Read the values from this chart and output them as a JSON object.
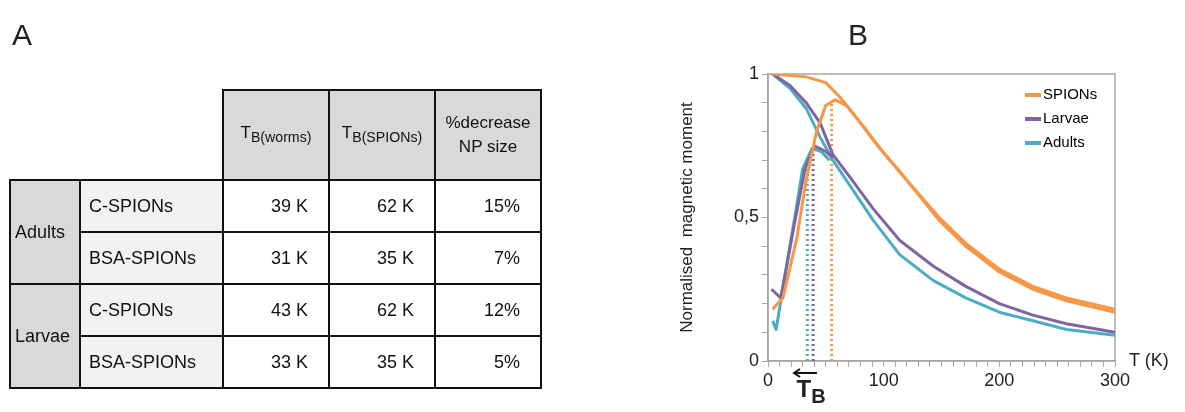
{
  "chart_data": [
    {
      "type": "other",
      "title": "A",
      "annotations": [
        "T$_{B(worms)}$",
        "T$_{B(SPIONs)}$",
        "%decrease NP size",
        "Adults",
        "C-SPIONs",
        "39 K",
        "62 K",
        "15%",
        "BSA-SPIONs",
        "31 K",
        "35 K",
        "7%",
        "Larvae",
        "C-SPIONs",
        "43 K",
        "62 K",
        "12%",
        "BSA-SPIONs",
        "33 K",
        "35 K",
        "5%"
      ]
    },
    {
      "type": "line",
      "title": "B",
      "xlabel": "T (K)",
      "ylabel": "Normalised  magnetic moment",
      "xlim": [
        0,
        300
      ],
      "ylim": [
        0,
        1
      ],
      "legend": "top right",
      "marker": "none",
      "xticks": [
        0,
        {
          "value": 10,
          "label": null
        },
        {
          "value": 20,
          "label": null
        },
        {
          "value": 30,
          "label": null
        },
        {
          "value": 40,
          "label": null
        },
        {
          "value": 50,
          "label": null
        },
        {
          "value": 60,
          "label": null
        },
        {
          "value": 70,
          "label": null
        },
        {
          "value": 80,
          "label": null
        },
        {
          "value": 90,
          "label": null
        },
        100,
        {
          "value": 110,
          "label": null
        },
        {
          "value": 120,
          "label": null
        },
        {
          "value": 130,
          "label": null
        },
        {
          "value": 140,
          "label": null
        },
        {
          "value": 150,
          "label": null
        },
        {
          "value": 160,
          "label": null
        },
        {
          "value": 170,
          "label": null
        },
        {
          "value": 180,
          "label": null
        },
        {
          "value": 190,
          "label": null
        },
        200,
        {
          "value": 210,
          "label": null
        },
        {
          "value": 220,
          "label": null
        },
        {
          "value": 230,
          "label": null
        },
        {
          "value": 240,
          "label": null
        },
        {
          "value": 250,
          "label": null
        },
        {
          "value": 260,
          "label": null
        },
        {
          "value": 270,
          "label": null
        },
        {
          "value": 280,
          "label": null
        },
        {
          "value": 290,
          "label": null
        },
        300
      ],
      "yticks": [
        {
          "value": 0,
          "label": "0"
        },
        {
          "value": 0.1,
          "label": null
        },
        {
          "value": 0.2,
          "label": null
        },
        {
          "value": 0.3,
          "label": null
        },
        {
          "value": 0.4,
          "label": null
        },
        {
          "value": 0.5,
          "label": "0,5"
        },
        {
          "value": 0.6,
          "label": null
        },
        {
          "value": 0.7,
          "label": null
        },
        {
          "value": 0.8,
          "label": null
        },
        {
          "value": 0.9,
          "label": null
        },
        {
          "value": 1,
          "label": "1"
        }
      ],
      "series": [
        {
          "name": "SPIONs",
          "color": "#f79646",
          "x": [
            4,
            33,
            50,
            62,
            76,
            91,
            105,
            120,
            148,
            171,
            200,
            229,
            258,
            300
          ],
          "values": [
            1,
            0.99,
            0.97,
            0.92,
            0.85,
            0.77,
            0.7,
            0.63,
            0.5,
            0.41,
            0.32,
            0.26,
            0.22,
            0.18
          ]
        },
        {
          "color": "#f79646",
          "x": [
            4,
            13,
            25,
            33,
            42,
            50,
            58,
            68,
            82,
            97,
            114,
            148,
            171,
            200,
            229,
            258,
            300
          ],
          "values": [
            0.18,
            0.22,
            0.43,
            0.63,
            0.8,
            0.89,
            0.91,
            0.89,
            0.82,
            0.74,
            0.66,
            0.49,
            0.4,
            0.31,
            0.25,
            0.21,
            0.17
          ]
        },
        {
          "name": "Larvae",
          "color": "#8064a2",
          "x": [
            4,
            19,
            33,
            45,
            56,
            71,
            91,
            114,
            143,
            171,
            200,
            229,
            258,
            300
          ],
          "values": [
            1,
            0.96,
            0.9,
            0.83,
            0.72,
            0.64,
            0.53,
            0.42,
            0.33,
            0.26,
            0.2,
            0.16,
            0.13,
            0.1
          ]
        },
        {
          "color": "#8064a2",
          "x": [
            3,
            11,
            22,
            32,
            40,
            50,
            56
          ],
          "values": [
            0.25,
            0.22,
            0.46,
            0.67,
            0.75,
            0.73,
            0.71
          ]
        },
        {
          "name": "Adults",
          "color": "#4bacc6",
          "x": [
            4,
            19,
            33,
            45,
            56,
            71,
            91,
            114,
            143,
            171,
            200,
            229,
            258,
            300
          ],
          "values": [
            1,
            0.95,
            0.88,
            0.78,
            0.7,
            0.61,
            0.49,
            0.37,
            0.28,
            0.22,
            0.17,
            0.14,
            0.11,
            0.09
          ]
        },
        {
          "color": "#4bacc6",
          "x": [
            4,
            7,
            19,
            30,
            38,
            46,
            53
          ],
          "values": [
            0.14,
            0.11,
            0.4,
            0.67,
            0.74,
            0.73,
            0.7
          ]
        }
      ],
      "ref_lines": [
        {
          "axis": "x",
          "value": 34,
          "color": "#4bacc6",
          "line_style": "dotted"
        },
        {
          "axis": "x",
          "value": 39,
          "color": "#8064a2",
          "line_style": "dotted"
        },
        {
          "axis": "x",
          "value": 55,
          "color": "#f79646",
          "line_style": "dotted"
        }
      ],
      "annotations": [
        {
          "text": "T$_{B}$",
          "x": 35,
          "y": 0
        }
      ]
    }
  ]
}
